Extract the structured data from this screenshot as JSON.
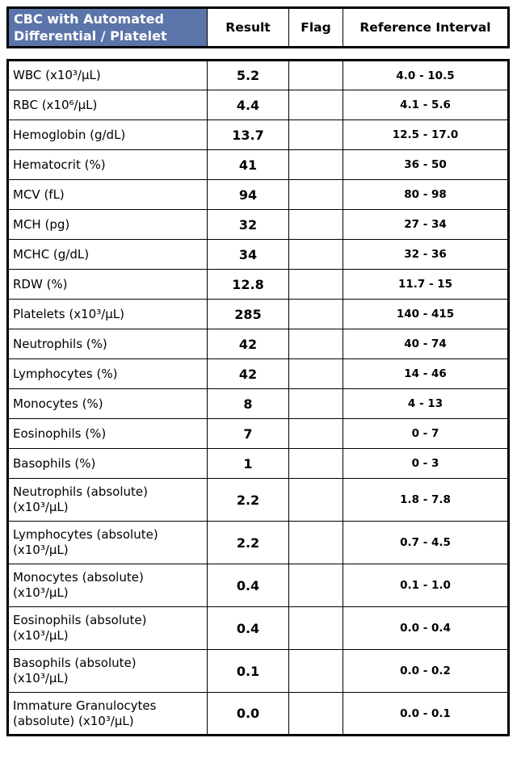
{
  "colors": {
    "title_bg": "#5b74a9",
    "title_text": "#ffffff",
    "border": "#000000"
  },
  "table": {
    "title": "CBC with Automated\nDifferential / Platelet",
    "columns": {
      "result": "Result",
      "flag": "Flag",
      "reference": "Reference Interval"
    },
    "rows": [
      {
        "name": "WBC (x10³/µL)",
        "result": "5.2",
        "flag": "",
        "reference": "4.0 - 10.5"
      },
      {
        "name": "RBC (x10⁶/µL)",
        "result": "4.4",
        "flag": "",
        "reference": "4.1 - 5.6"
      },
      {
        "name": "Hemoglobin (g/dL)",
        "result": "13.7",
        "flag": "",
        "reference": "12.5 - 17.0"
      },
      {
        "name": "Hematocrit (%)",
        "result": "41",
        "flag": "",
        "reference": "36 - 50"
      },
      {
        "name": "MCV (fL)",
        "result": "94",
        "flag": "",
        "reference": "80 - 98"
      },
      {
        "name": "MCH (pg)",
        "result": "32",
        "flag": "",
        "reference": "27 - 34"
      },
      {
        "name": "MCHC (g/dL)",
        "result": "34",
        "flag": "",
        "reference": "32 - 36"
      },
      {
        "name": "RDW (%)",
        "result": "12.8",
        "flag": "",
        "reference": "11.7 - 15"
      },
      {
        "name": "Platelets (x10³/µL)",
        "result": "285",
        "flag": "",
        "reference": "140 - 415"
      },
      {
        "name": "Neutrophils (%)",
        "result": "42",
        "flag": "",
        "reference": "40 - 74"
      },
      {
        "name": "Lymphocytes (%)",
        "result": "42",
        "flag": "",
        "reference": "14 - 46"
      },
      {
        "name": "Monocytes (%)",
        "result": "8",
        "flag": "",
        "reference": "4 - 13"
      },
      {
        "name": "Eosinophils (%)",
        "result": "7",
        "flag": "",
        "reference": "0 - 7"
      },
      {
        "name": "Basophils (%)",
        "result": "1",
        "flag": "",
        "reference": "0 - 3"
      },
      {
        "name": "Neutrophils (absolute)\n(x10³/µL)",
        "result": "2.2",
        "flag": "",
        "reference": "1.8 - 7.8"
      },
      {
        "name": "Lymphocytes (absolute)\n(x10³/µL)",
        "result": "2.2",
        "flag": "",
        "reference": "0.7 - 4.5"
      },
      {
        "name": "Monocytes (absolute)\n(x10³/µL)",
        "result": "0.4",
        "flag": "",
        "reference": "0.1 - 1.0"
      },
      {
        "name": "Eosinophils (absolute)\n(x10³/µL)",
        "result": "0.4",
        "flag": "",
        "reference": "0.0 - 0.4"
      },
      {
        "name": "Basophils (absolute)\n(x10³/µL)",
        "result": "0.1",
        "flag": "",
        "reference": "0.0 - 0.2"
      },
      {
        "name": "Immature Granulocytes\n(absolute) (x10³/µL)",
        "result": "0.0",
        "flag": "",
        "reference": "0.0 - 0.1"
      }
    ]
  }
}
